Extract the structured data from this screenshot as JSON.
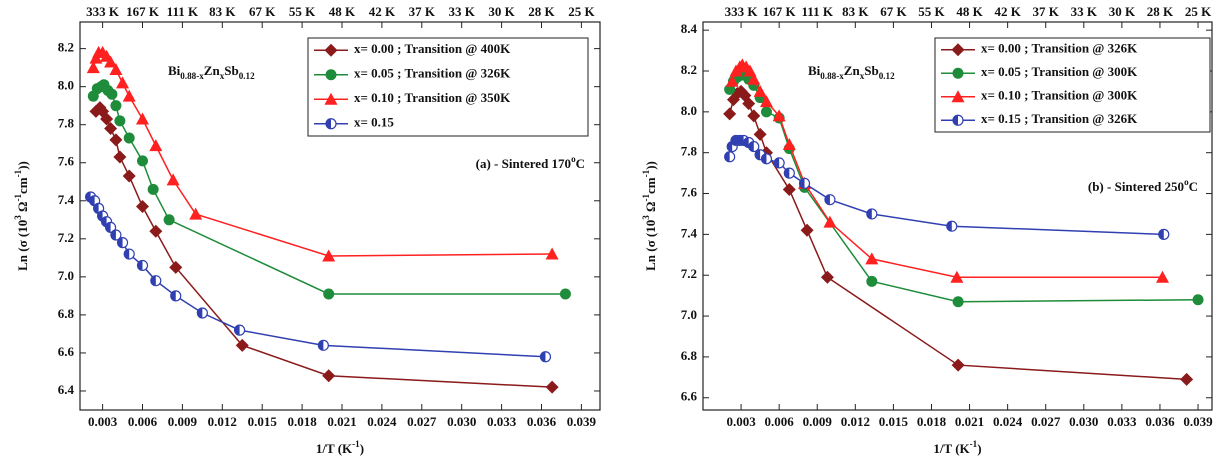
{
  "chart_data": [
    {
      "type": "line",
      "ylabel": [
        "Ln (σ (10",
        "3",
        " Ω",
        "-1",
        "cm",
        "-1",
        "))"
      ],
      "xlabel": [
        "1/T (K",
        "-1",
        ")"
      ],
      "formula": [
        "Bi",
        "0.88-x",
        "Zn",
        "x",
        "Sb",
        "0.12"
      ],
      "annotation": [
        "(a) - Sintered 170",
        "o",
        "C"
      ],
      "legend": "upper right",
      "xlim": [
        0.0013,
        0.0404
      ],
      "ylim": [
        6.3,
        8.34
      ],
      "xticks": [
        0.003,
        0.006,
        0.009,
        0.012,
        0.015,
        0.018,
        0.021,
        0.024,
        0.027,
        {
          "value": 0.03,
          "label": "0.030"
        },
        0.033,
        0.036,
        0.039
      ],
      "x2ticks": [
        {
          "value": 0.003,
          "label": "333 K"
        },
        {
          "value": 0.006,
          "label": "167 K"
        },
        {
          "value": 0.009,
          "label": "111 K"
        },
        {
          "value": 0.012,
          "label": "83 K"
        },
        {
          "value": 0.015,
          "label": "67 K"
        },
        {
          "value": 0.018,
          "label": "55 K"
        },
        {
          "value": 0.021,
          "label": "48 K"
        },
        {
          "value": 0.024,
          "label": "42 K"
        },
        {
          "value": 0.027,
          "label": "37 K"
        },
        {
          "value": 0.03,
          "label": "33 K"
        },
        {
          "value": 0.033,
          "label": "30 K"
        },
        {
          "value": 0.036,
          "label": "28 K"
        },
        {
          "value": 0.039,
          "label": "25 K"
        }
      ],
      "yticks": [
        6.4,
        6.6,
        6.8,
        {
          "value": 7,
          "label": "7.0"
        },
        7.2,
        7.4,
        7.6,
        7.8,
        {
          "value": 8,
          "label": "8.0"
        },
        8.2
      ],
      "series": [
        {
          "name": "x= 0.00 ; Transition @ 400K",
          "color": "#8b1a1a",
          "marker": "diamond",
          "x": [
            0.0025,
            0.0028,
            0.003,
            0.0033,
            0.0036,
            0.004,
            0.0043,
            0.005,
            0.006,
            0.007,
            0.0085,
            0.0135,
            0.02,
            0.0368
          ],
          "values": [
            7.87,
            7.89,
            7.87,
            7.83,
            7.78,
            7.72,
            7.63,
            7.53,
            7.37,
            7.24,
            7.05,
            6.64,
            6.48,
            6.42
          ]
        },
        {
          "name": "x= 0.05 ; Transition @ 326K",
          "color": "#1e8c3a",
          "marker": "circle",
          "x": [
            0.0023,
            0.0026,
            0.0029,
            0.0031,
            0.0034,
            0.0037,
            0.004,
            0.0043,
            0.005,
            0.006,
            0.0068,
            0.008,
            0.02,
            0.0378
          ],
          "values": [
            7.95,
            7.99,
            8.0,
            8.01,
            7.98,
            7.96,
            7.9,
            7.82,
            7.73,
            7.61,
            7.46,
            7.3,
            6.91,
            6.91
          ]
        },
        {
          "name": "x= 0.10 ; Transition @ 350K",
          "color": "#ff2020",
          "marker": "triangle",
          "x": [
            0.0023,
            0.0025,
            0.0027,
            0.003,
            0.0033,
            0.0036,
            0.004,
            0.0045,
            0.005,
            0.006,
            0.007,
            0.0083,
            0.01,
            0.02,
            0.0368
          ],
          "values": [
            8.1,
            8.15,
            8.18,
            8.18,
            8.16,
            8.13,
            8.09,
            8.02,
            7.95,
            7.83,
            7.69,
            7.51,
            7.33,
            7.11,
            7.12
          ]
        },
        {
          "name": "x= 0.15",
          "color": "#3040b0",
          "marker": "half",
          "x": [
            0.0021,
            0.0024,
            0.0027,
            0.003,
            0.0033,
            0.0036,
            0.004,
            0.0045,
            0.005,
            0.006,
            0.007,
            0.0085,
            0.0105,
            0.0133,
            0.0196,
            0.0363
          ],
          "values": [
            7.42,
            7.4,
            7.36,
            7.32,
            7.29,
            7.26,
            7.22,
            7.18,
            7.12,
            7.06,
            6.98,
            6.9,
            6.81,
            6.72,
            6.64,
            6.58
          ]
        }
      ]
    },
    {
      "type": "line",
      "ylabel": [
        "Ln (σ (10",
        "3",
        " Ω",
        "-1",
        "cm",
        "-1",
        "))"
      ],
      "xlabel": [
        "1/T (K",
        "-1",
        ")"
      ],
      "formula": [
        "Bi",
        "0.88-x",
        "Zn",
        "x",
        "Sb",
        "0.12"
      ],
      "annotation": [
        "(b) - Sintered 250",
        "o",
        "C"
      ],
      "legend": "upper right",
      "xlim": [
        0.0,
        0.0401
      ],
      "ylim": [
        6.54,
        8.44
      ],
      "xticks": [
        0.003,
        0.006,
        0.009,
        0.012,
        0.015,
        0.018,
        0.021,
        0.024,
        0.027,
        {
          "value": 0.03,
          "label": "0.030"
        },
        0.033,
        0.036,
        0.039
      ],
      "x2ticks": [
        {
          "value": 0.003,
          "label": "333 K"
        },
        {
          "value": 0.006,
          "label": "167 K"
        },
        {
          "value": 0.009,
          "label": "111 K"
        },
        {
          "value": 0.012,
          "label": "83 K"
        },
        {
          "value": 0.015,
          "label": "67 K"
        },
        {
          "value": 0.018,
          "label": "55 K"
        },
        {
          "value": 0.021,
          "label": "48 K"
        },
        {
          "value": 0.024,
          "label": "42 K"
        },
        {
          "value": 0.027,
          "label": "37 K"
        },
        {
          "value": 0.03,
          "label": "33 K"
        },
        {
          "value": 0.033,
          "label": "30 K"
        },
        {
          "value": 0.036,
          "label": "28 K"
        },
        {
          "value": 0.039,
          "label": "25 K"
        }
      ],
      "yticks": [
        6.6,
        6.8,
        {
          "value": 7,
          "label": "7.0"
        },
        7.2,
        7.4,
        7.6,
        7.8,
        {
          "value": 8,
          "label": "8.0"
        },
        8.2,
        8.4
      ],
      "series": [
        {
          "name": "x= 0.00 ; Transition @ 326K",
          "color": "#8b1a1a",
          "marker": "diamond",
          "x": [
            0.0021,
            0.0024,
            0.0027,
            0.003,
            0.0033,
            0.0036,
            0.004,
            0.0045,
            0.005,
            0.0068,
            0.0082,
            0.0098,
            0.0201,
            0.0381
          ],
          "values": [
            7.99,
            8.06,
            8.09,
            8.1,
            8.08,
            8.04,
            7.98,
            7.89,
            7.8,
            7.62,
            7.42,
            7.19,
            6.76,
            6.69
          ]
        },
        {
          "name": "x= 0.05 ; Transition @ 300K",
          "color": "#1e8c3a",
          "marker": "circle",
          "x": [
            0.0021,
            0.0024,
            0.0027,
            0.003,
            0.0033,
            0.0036,
            0.004,
            0.0045,
            0.005,
            0.006,
            0.0068,
            0.008,
            0.0133,
            0.0201,
            0.039
          ],
          "values": [
            8.11,
            8.15,
            8.17,
            8.18,
            8.18,
            8.16,
            8.13,
            8.07,
            8.0,
            7.97,
            7.82,
            7.63,
            7.17,
            7.07,
            7.08
          ]
        },
        {
          "name": "x= 0.10 ; Transition @ 300K",
          "color": "#ff2020",
          "marker": "triangle",
          "x": [
            0.0023,
            0.0026,
            0.0029,
            0.0031,
            0.0034,
            0.0037,
            0.004,
            0.0045,
            0.005,
            0.006,
            0.0068,
            0.008,
            0.01,
            0.0133,
            0.02,
            0.0362
          ],
          "values": [
            8.15,
            8.2,
            8.22,
            8.23,
            8.22,
            8.2,
            8.16,
            8.1,
            8.05,
            7.98,
            7.84,
            7.65,
            7.46,
            7.28,
            7.19,
            7.19
          ]
        },
        {
          "name": "x= 0.15 ; Transition @ 326K",
          "color": "#3040b0",
          "marker": "half",
          "x": [
            0.0021,
            0.0023,
            0.0026,
            0.0029,
            0.0032,
            0.0036,
            0.004,
            0.0045,
            0.005,
            0.006,
            0.0068,
            0.008,
            0.01,
            0.0133,
            0.0196,
            0.0363
          ],
          "values": [
            7.78,
            7.83,
            7.86,
            7.86,
            7.86,
            7.85,
            7.83,
            7.79,
            7.77,
            7.75,
            7.7,
            7.65,
            7.57,
            7.5,
            7.44,
            7.4
          ]
        }
      ]
    }
  ]
}
